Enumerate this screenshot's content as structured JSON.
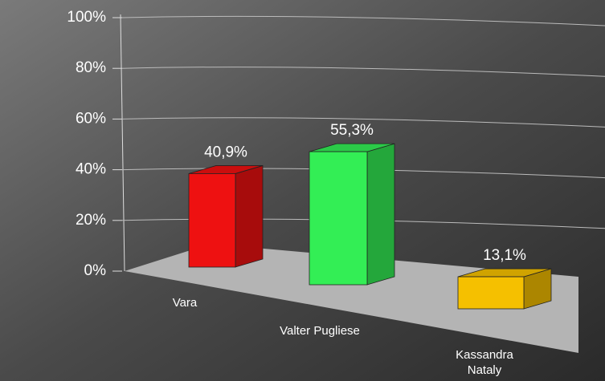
{
  "chart_data": {
    "type": "bar3d",
    "categories": [
      "Vara",
      "Valter Pugliese",
      "Kassandra Nataly"
    ],
    "values": [
      40.9,
      55.3,
      13.1
    ],
    "value_labels": [
      "40,9%",
      "55,3%",
      "13,1%"
    ],
    "colors": [
      "#ee1111",
      "#33ee55",
      "#f5c000"
    ],
    "ylim": [
      0,
      100
    ],
    "yticks": [
      {
        "value": 0,
        "label": "0%"
      },
      {
        "value": 20,
        "label": "20%"
      },
      {
        "value": 40,
        "label": "40%"
      },
      {
        "value": 60,
        "label": "60%"
      },
      {
        "value": 80,
        "label": "80%"
      },
      {
        "value": 100,
        "label": "100%"
      }
    ],
    "grid": true
  }
}
